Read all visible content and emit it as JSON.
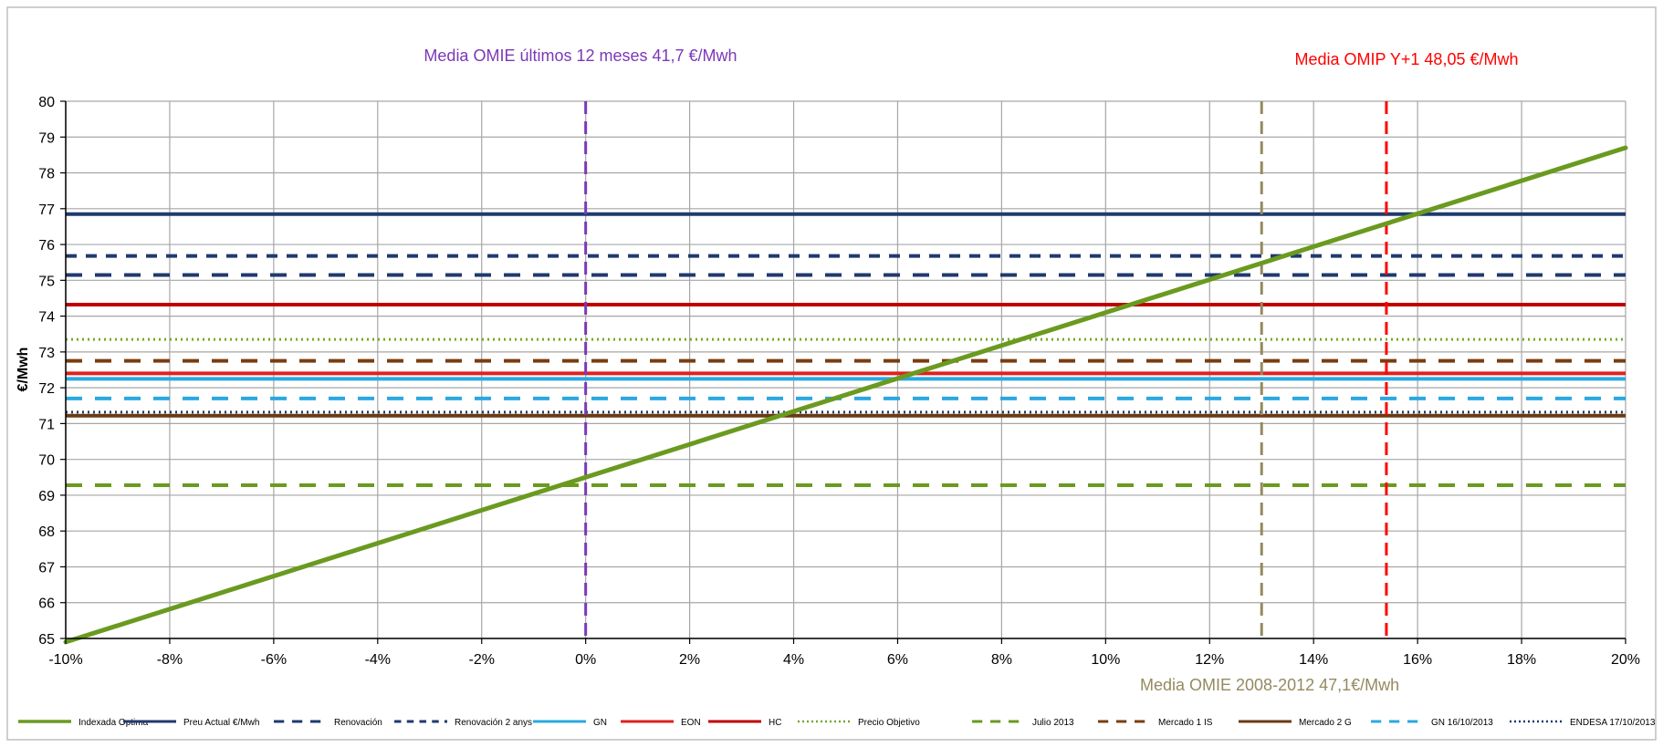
{
  "chart_data": {
    "type": "line",
    "title": "",
    "ylabel": "€/Mwh",
    "xlabel": "",
    "x_range": [
      -0.1,
      0.2
    ],
    "ylim": [
      65,
      80
    ],
    "x_ticks": [
      -0.1,
      -0.08,
      -0.06,
      -0.04,
      -0.02,
      0,
      0.02,
      0.04,
      0.06,
      0.08,
      0.1,
      0.12,
      0.14,
      0.16,
      0.18,
      0.2
    ],
    "x_tick_labels": [
      "-10%",
      "-8%",
      "-6%",
      "-4%",
      "-2%",
      "0%",
      "2%",
      "4%",
      "6%",
      "8%",
      "10%",
      "12%",
      "14%",
      "16%",
      "18%",
      "20%"
    ],
    "y_ticks": [
      65,
      66,
      67,
      68,
      69,
      70,
      71,
      72,
      73,
      74,
      75,
      76,
      77,
      78,
      79,
      80
    ],
    "grid": true,
    "legend_position": "bottom",
    "series": [
      {
        "name": "Indexada Optima",
        "kind": "line",
        "x": [
          -0.1,
          0.2
        ],
        "y": [
          64.9,
          78.7
        ],
        "color": "#6a9a1f",
        "dash": "solid"
      },
      {
        "name": "Preu Actual €/Mwh",
        "kind": "hline",
        "y": 76.85,
        "color": "#1f3a6e",
        "dash": "solid"
      },
      {
        "name": "Renovación",
        "kind": "hline",
        "y": 75.15,
        "color": "#1f3a6e",
        "dash": "dash"
      },
      {
        "name": "Renovación 2 anys",
        "kind": "hline",
        "y": 75.68,
        "color": "#1f3a6e",
        "dash": "shortdash"
      },
      {
        "name": "GN",
        "kind": "hline",
        "y": 72.25,
        "color": "#2aa8e0",
        "dash": "solid"
      },
      {
        "name": "EON",
        "kind": "hline",
        "y": 72.4,
        "color": "#e02020",
        "dash": "solid"
      },
      {
        "name": "HC",
        "kind": "hline",
        "y": 74.32,
        "color": "#c00000",
        "dash": "solid"
      },
      {
        "name": "Precio Objetivo",
        "kind": "hline",
        "y": 73.35,
        "color": "#77a82a",
        "dash": "dot"
      },
      {
        "name": "Julio 2013",
        "kind": "hline",
        "y": 69.28,
        "color": "#6a9a1f",
        "dash": "dash"
      },
      {
        "name": "Mercado 1 IS",
        "kind": "hline",
        "y": 72.75,
        "color": "#7a3d10",
        "dash": "dash"
      },
      {
        "name": "Mercado 2 G",
        "kind": "hline",
        "y": 71.22,
        "color": "#6b3a12",
        "dash": "solid"
      },
      {
        "name": "GN 16/10/2013",
        "kind": "hline",
        "y": 71.7,
        "color": "#2aa8e0",
        "dash": "dash"
      },
      {
        "name": "ENDESA 17/10/2013",
        "kind": "hline",
        "y": 71.32,
        "color": "#1f3a6e",
        "dash": "dot"
      }
    ],
    "vertical_markers": [
      {
        "x": 0.0,
        "label": "Media  OMIE últimos 12 meses 41,7 €/Mwh",
        "color": "#7b38b8",
        "label_color": "#7b38b8"
      },
      {
        "x": 0.13,
        "label": "Media  OMIE 2008-2012  47,1€/Mwh",
        "color": "#948a60",
        "label_color": "#948a60"
      },
      {
        "x": 0.154,
        "label": "Media OMIP Y+1 48,05 €/Mwh",
        "color": "#ff0000",
        "label_color": "#ff0000"
      }
    ]
  }
}
